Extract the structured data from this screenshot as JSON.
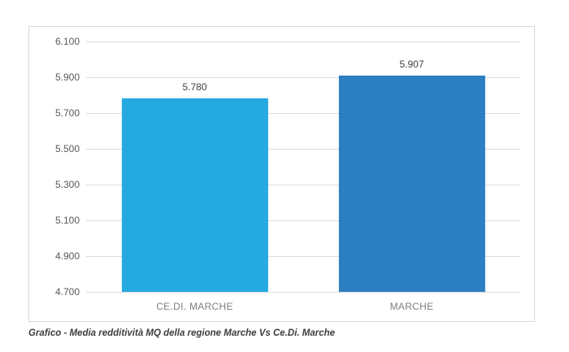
{
  "chart_data": {
    "type": "bar",
    "categories": [
      "CE.DI. MARCHE",
      "MARCHE"
    ],
    "values": [
      5.78,
      5.907
    ],
    "value_labels": [
      "5.780",
      "5.907"
    ],
    "bar_colors": [
      "#24A9E1",
      "#2B7FC2"
    ],
    "title": "",
    "xlabel": "",
    "ylabel": "",
    "ylim": [
      4.7,
      6.1
    ],
    "yticks": [
      "6.100",
      "5.900",
      "5.700",
      "5.500",
      "5.300",
      "5.100",
      "4.900",
      "4.700"
    ],
    "grid": true,
    "legend": false
  },
  "caption": "Grafico - Media redditività MQ della regione Marche Vs Ce.Di. Marche",
  "colors": {
    "card_border": "#d8d8d8",
    "gridline": "#dcdcdc",
    "tick_label": "#595959",
    "category_label": "#7f7f7f",
    "value_label": "#404040",
    "caption": "#3d3d3d",
    "background": "#ffffff"
  }
}
